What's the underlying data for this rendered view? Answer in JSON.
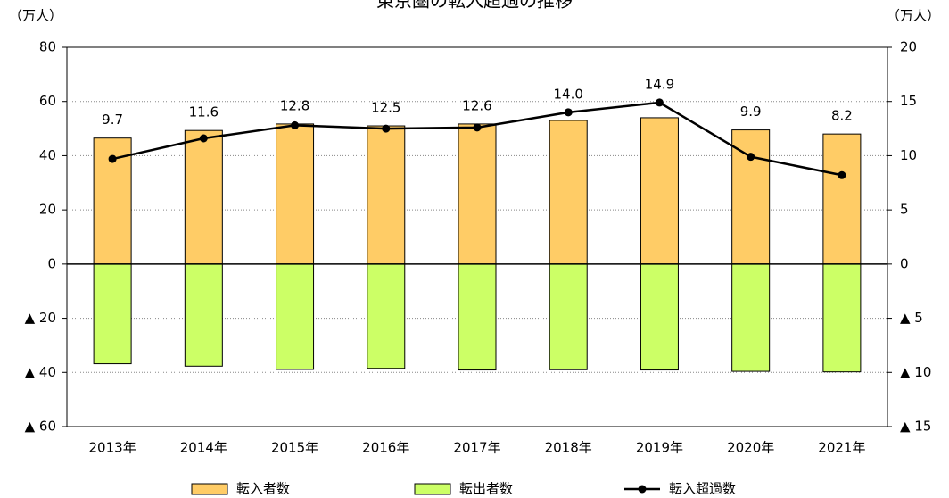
{
  "chart_data": {
    "type": "bar",
    "title": "東京圏の転入超過の推移",
    "y_unit": "（万人）",
    "y2_unit": "（万人）",
    "categories": [
      "2013年",
      "2014年",
      "2015年",
      "2016年",
      "2017年",
      "2018年",
      "2019年",
      "2020年",
      "2021年"
    ],
    "series": [
      {
        "name": "転入者数",
        "type": "bar",
        "color": "#FFCC66",
        "values": [
          46.5,
          49.3,
          51.7,
          51.0,
          51.7,
          53.0,
          54.0,
          49.5,
          48.0
        ]
      },
      {
        "name": "転出者数",
        "type": "bar",
        "color": "#CCFF66",
        "values": [
          -36.8,
          -37.7,
          -38.9,
          -38.5,
          -39.1,
          -39.0,
          -39.1,
          -39.6,
          -39.8
        ]
      },
      {
        "name": "転入超過数",
        "type": "line",
        "axis": "y2",
        "color": "#000000",
        "values": [
          9.7,
          11.6,
          12.8,
          12.5,
          12.6,
          14.0,
          14.9,
          9.9,
          8.2
        ],
        "value_labels": [
          "9.7",
          "11.6",
          "12.8",
          "12.5",
          "12.6",
          "14.0",
          "14.9",
          "9.9",
          "8.2"
        ]
      }
    ],
    "ylim": [
      -60,
      80
    ],
    "yticks": [
      {
        "value": -60,
        "label": "▲ 60"
      },
      {
        "value": -40,
        "label": "▲ 40"
      },
      {
        "value": -20,
        "label": "▲ 20"
      },
      0,
      20,
      40,
      60,
      80
    ],
    "y2lim": [
      -15,
      20
    ],
    "y2ticks": [
      {
        "value": -15,
        "label": "▲ 15"
      },
      {
        "value": -10,
        "label": "▲ 10"
      },
      {
        "value": -5,
        "label": "▲ 5"
      },
      0,
      5,
      10,
      15,
      20
    ],
    "grid": true
  }
}
